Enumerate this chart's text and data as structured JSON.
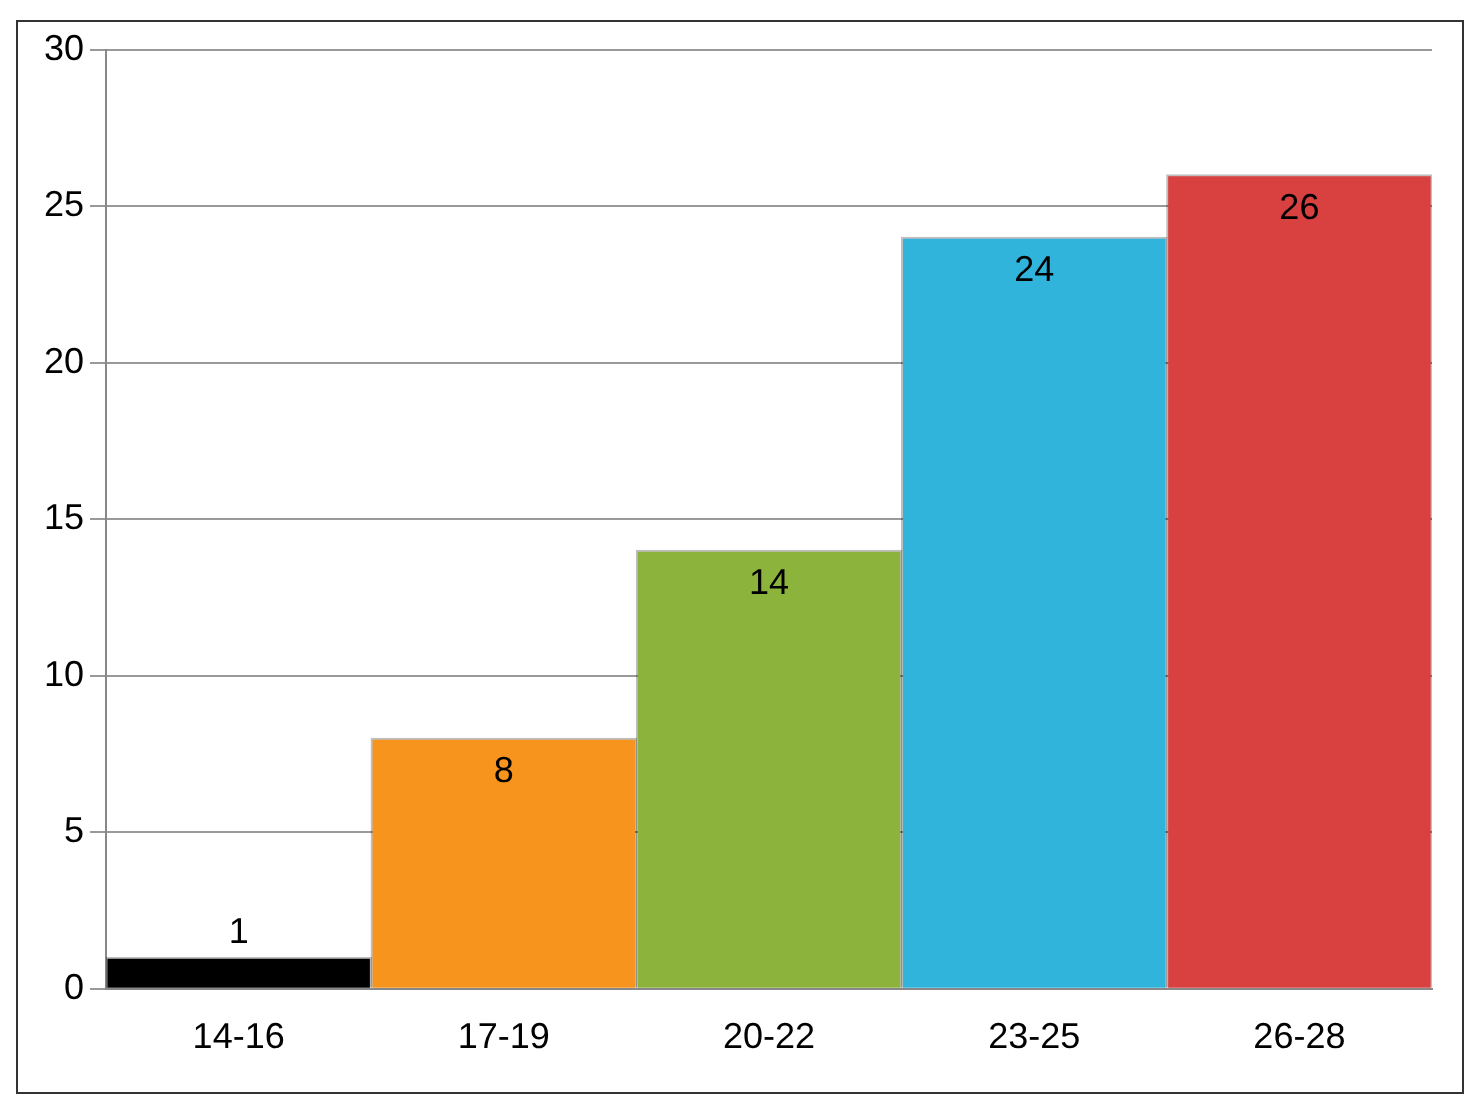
{
  "chart_data": {
    "type": "bar",
    "categories": [
      "14-16",
      "17-19",
      "20-22",
      "23-25",
      "26-28"
    ],
    "values": [
      1,
      8,
      14,
      24,
      26
    ],
    "colors": [
      "#000000",
      "#f7941d",
      "#8cb43c",
      "#31b4dc",
      "#d94040"
    ],
    "ylim": [
      0,
      30
    ],
    "yticks": [
      0,
      5,
      10,
      15,
      20,
      25,
      30
    ],
    "grid": "y",
    "data_labels": true,
    "legend": false
  }
}
